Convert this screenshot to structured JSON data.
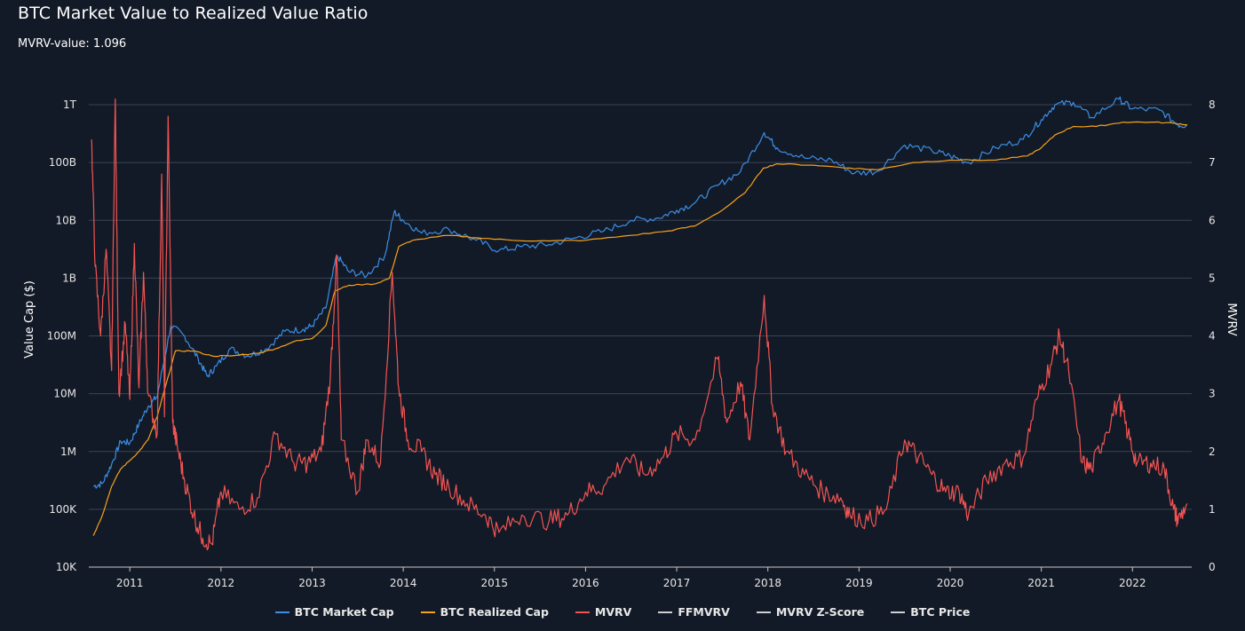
{
  "title": "BTC Market Value to Realized Value Ratio",
  "subtitle": "MVRV-value: 1.096",
  "legend": [
    {
      "label": "BTC Market Cap",
      "color": "#3a8ee6"
    },
    {
      "label": "BTC Realized Cap",
      "color": "#f7a21b"
    },
    {
      "label": "MVRV",
      "color": "#f25452"
    },
    {
      "label": "FFMVRV",
      "color": "#cfcfcf"
    },
    {
      "label": "MVRV Z-Score",
      "color": "#cfcfcf"
    },
    {
      "label": "BTC Price",
      "color": "#cfcfcf"
    }
  ],
  "chart_data": {
    "type": "line",
    "title": "BTC Market Value to Realized Value Ratio",
    "ylabel": "Value Cap ($)",
    "y2label": "MVRV",
    "xlim": [
      2010.55,
      2022.65
    ],
    "ylim_log": [
      10000,
      1000000000000
    ],
    "y2lim": [
      0,
      8
    ],
    "x_ticks": [
      "2011",
      "2012",
      "2013",
      "2014",
      "2015",
      "2016",
      "2017",
      "2018",
      "2019",
      "2020",
      "2021",
      "2022"
    ],
    "y_ticks": [
      "10K",
      "100K",
      "1M",
      "10M",
      "100M",
      "1B",
      "10B",
      "100B",
      "1T"
    ],
    "y2_ticks": [
      "0",
      "1",
      "2",
      "3",
      "4",
      "5",
      "6",
      "7",
      "8"
    ],
    "grid": true,
    "legend_position": "bottom",
    "series": [
      {
        "name": "BTC Market Cap",
        "axis": "left-log",
        "color": "#3a8ee6",
        "points": [
          [
            2010.6,
            250000
          ],
          [
            2010.7,
            280000
          ],
          [
            2010.8,
            600000
          ],
          [
            2010.9,
            1500000
          ],
          [
            2011.0,
            1400000
          ],
          [
            2011.1,
            3000000
          ],
          [
            2011.2,
            6000000
          ],
          [
            2011.3,
            9000000
          ],
          [
            2011.45,
            150000000
          ],
          [
            2011.6,
            100000000
          ],
          [
            2011.75,
            40000000
          ],
          [
            2011.85,
            20000000
          ],
          [
            2011.95,
            30000000
          ],
          [
            2012.1,
            60000000
          ],
          [
            2012.3,
            45000000
          ],
          [
            2012.5,
            60000000
          ],
          [
            2012.7,
            120000000
          ],
          [
            2012.9,
            130000000
          ],
          [
            2013.0,
            150000000
          ],
          [
            2013.15,
            300000000
          ],
          [
            2013.27,
            2500000000
          ],
          [
            2013.4,
            1300000000
          ],
          [
            2013.6,
            1100000000
          ],
          [
            2013.8,
            2500000000
          ],
          [
            2013.9,
            14000000000
          ],
          [
            2014.0,
            10000000000
          ],
          [
            2014.2,
            6000000000
          ],
          [
            2014.5,
            7000000000
          ],
          [
            2014.8,
            4500000000
          ],
          [
            2015.05,
            3000000000
          ],
          [
            2015.3,
            3500000000
          ],
          [
            2015.6,
            3800000000
          ],
          [
            2015.9,
            5000000000
          ],
          [
            2016.2,
            6500000000
          ],
          [
            2016.5,
            10000000000
          ],
          [
            2016.8,
            11000000000
          ],
          [
            2017.0,
            15000000000
          ],
          [
            2017.2,
            20000000000
          ],
          [
            2017.45,
            40000000000
          ],
          [
            2017.7,
            70000000000
          ],
          [
            2017.96,
            330000000000
          ],
          [
            2018.1,
            180000000000
          ],
          [
            2018.4,
            120000000000
          ],
          [
            2018.7,
            110000000000
          ],
          [
            2018.95,
            65000000000
          ],
          [
            2019.2,
            70000000000
          ],
          [
            2019.5,
            200000000000
          ],
          [
            2019.8,
            160000000000
          ],
          [
            2020.0,
            130000000000
          ],
          [
            2020.2,
            100000000000
          ],
          [
            2020.5,
            180000000000
          ],
          [
            2020.8,
            250000000000
          ],
          [
            2021.0,
            550000000000
          ],
          [
            2021.15,
            1000000000000
          ],
          [
            2021.35,
            1100000000000
          ],
          [
            2021.55,
            600000000000
          ],
          [
            2021.85,
            1250000000000
          ],
          [
            2022.0,
            850000000000
          ],
          [
            2022.3,
            800000000000
          ],
          [
            2022.5,
            450000000000
          ],
          [
            2022.6,
            440000000000
          ]
        ]
      },
      {
        "name": "BTC Realized Cap",
        "axis": "left-log",
        "color": "#f7a21b",
        "points": [
          [
            2010.6,
            35000
          ],
          [
            2010.7,
            80000
          ],
          [
            2010.8,
            250000
          ],
          [
            2010.9,
            500000
          ],
          [
            2011.0,
            700000
          ],
          [
            2011.1,
            1000000
          ],
          [
            2011.2,
            1600000
          ],
          [
            2011.3,
            4000000
          ],
          [
            2011.4,
            15000000
          ],
          [
            2011.5,
            55000000
          ],
          [
            2011.7,
            55000000
          ],
          [
            2011.9,
            45000000
          ],
          [
            2012.1,
            45000000
          ],
          [
            2012.4,
            50000000
          ],
          [
            2012.6,
            60000000
          ],
          [
            2012.8,
            80000000
          ],
          [
            2013.0,
            90000000
          ],
          [
            2013.15,
            150000000
          ],
          [
            2013.25,
            600000000
          ],
          [
            2013.4,
            750000000
          ],
          [
            2013.7,
            800000000
          ],
          [
            2013.85,
            1000000000
          ],
          [
            2013.95,
            3500000000
          ],
          [
            2014.1,
            4500000000
          ],
          [
            2014.5,
            5500000000
          ],
          [
            2014.8,
            5000000000
          ],
          [
            2015.2,
            4500000000
          ],
          [
            2015.6,
            4400000000
          ],
          [
            2016.0,
            4500000000
          ],
          [
            2016.5,
            5500000000
          ],
          [
            2016.9,
            6500000000
          ],
          [
            2017.2,
            8000000000
          ],
          [
            2017.5,
            15000000000
          ],
          [
            2017.75,
            30000000000
          ],
          [
            2017.95,
            80000000000
          ],
          [
            2018.1,
            95000000000
          ],
          [
            2018.5,
            90000000000
          ],
          [
            2018.9,
            80000000000
          ],
          [
            2019.2,
            75000000000
          ],
          [
            2019.6,
            100000000000
          ],
          [
            2020.0,
            110000000000
          ],
          [
            2020.5,
            110000000000
          ],
          [
            2020.85,
            130000000000
          ],
          [
            2021.0,
            180000000000
          ],
          [
            2021.15,
            300000000000
          ],
          [
            2021.35,
            420000000000
          ],
          [
            2021.6,
            420000000000
          ],
          [
            2021.9,
            500000000000
          ],
          [
            2022.2,
            500000000000
          ],
          [
            2022.45,
            480000000000
          ],
          [
            2022.6,
            450000000000
          ]
        ]
      },
      {
        "name": "MVRV",
        "axis": "right",
        "color": "#f25452",
        "points": [
          [
            2010.58,
            7.4
          ],
          [
            2010.62,
            5.2
          ],
          [
            2010.68,
            4.0
          ],
          [
            2010.74,
            5.5
          ],
          [
            2010.8,
            3.4
          ],
          [
            2010.84,
            8.1
          ],
          [
            2010.88,
            3.0
          ],
          [
            2010.95,
            4.2
          ],
          [
            2011.0,
            2.9
          ],
          [
            2011.05,
            5.6
          ],
          [
            2011.1,
            3.1
          ],
          [
            2011.15,
            5.1
          ],
          [
            2011.2,
            3.0
          ],
          [
            2011.3,
            2.3
          ],
          [
            2011.35,
            6.8
          ],
          [
            2011.38,
            2.6
          ],
          [
            2011.42,
            7.8
          ],
          [
            2011.47,
            2.5
          ],
          [
            2011.52,
            2.1
          ],
          [
            2011.6,
            1.5
          ],
          [
            2011.7,
            0.9
          ],
          [
            2011.8,
            0.5
          ],
          [
            2011.9,
            0.4
          ],
          [
            2012.0,
            1.3
          ],
          [
            2012.2,
            1.0
          ],
          [
            2012.4,
            1.2
          ],
          [
            2012.6,
            2.3
          ],
          [
            2012.8,
            1.8
          ],
          [
            2012.95,
            1.8
          ],
          [
            2013.1,
            2.0
          ],
          [
            2013.2,
            3.3
          ],
          [
            2013.27,
            5.4
          ],
          [
            2013.32,
            2.2
          ],
          [
            2013.5,
            1.3
          ],
          [
            2013.6,
            2.2
          ],
          [
            2013.75,
            1.8
          ],
          [
            2013.88,
            5.1
          ],
          [
            2013.95,
            3.1
          ],
          [
            2014.05,
            2.2
          ],
          [
            2014.2,
            2.0
          ],
          [
            2014.35,
            1.6
          ],
          [
            2014.5,
            1.4
          ],
          [
            2014.7,
            1.1
          ],
          [
            2014.9,
            0.9
          ],
          [
            2015.05,
            0.6
          ],
          [
            2015.3,
            0.9
          ],
          [
            2015.6,
            0.8
          ],
          [
            2015.8,
            0.9
          ],
          [
            2016.0,
            1.3
          ],
          [
            2016.2,
            1.4
          ],
          [
            2016.45,
            1.9
          ],
          [
            2016.65,
            1.6
          ],
          [
            2016.85,
            1.9
          ],
          [
            2017.0,
            2.3
          ],
          [
            2017.2,
            2.2
          ],
          [
            2017.45,
            3.6
          ],
          [
            2017.55,
            2.5
          ],
          [
            2017.7,
            3.2
          ],
          [
            2017.8,
            2.2
          ],
          [
            2017.96,
            4.7
          ],
          [
            2018.05,
            2.8
          ],
          [
            2018.2,
            2.0
          ],
          [
            2018.4,
            1.6
          ],
          [
            2018.6,
            1.3
          ],
          [
            2018.8,
            1.2
          ],
          [
            2018.9,
            0.9
          ],
          [
            2019.1,
            0.8
          ],
          [
            2019.3,
            1.0
          ],
          [
            2019.5,
            2.2
          ],
          [
            2019.65,
            1.9
          ],
          [
            2019.8,
            1.6
          ],
          [
            2019.95,
            1.3
          ],
          [
            2020.1,
            1.3
          ],
          [
            2020.2,
            0.9
          ],
          [
            2020.4,
            1.5
          ],
          [
            2020.6,
            1.8
          ],
          [
            2020.8,
            1.9
          ],
          [
            2020.95,
            2.9
          ],
          [
            2021.1,
            3.5
          ],
          [
            2021.2,
            4.0
          ],
          [
            2021.3,
            3.4
          ],
          [
            2021.45,
            1.8
          ],
          [
            2021.55,
            1.7
          ],
          [
            2021.7,
            2.3
          ],
          [
            2021.85,
            2.9
          ],
          [
            2021.95,
            2.3
          ],
          [
            2022.05,
            1.8
          ],
          [
            2022.2,
            1.8
          ],
          [
            2022.35,
            1.7
          ],
          [
            2022.45,
            1.0
          ],
          [
            2022.5,
            0.8
          ],
          [
            2022.6,
            1.1
          ]
        ]
      }
    ]
  }
}
